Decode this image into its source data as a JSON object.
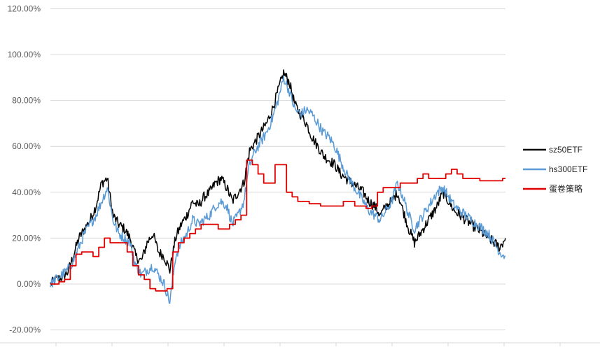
{
  "chart_data": {
    "type": "line",
    "title": "",
    "xlabel": "",
    "ylabel": "",
    "ylim": [
      -20,
      120
    ],
    "y_ticks": [
      120,
      100,
      80,
      60,
      40,
      20,
      0,
      -20
    ],
    "y_tick_labels": [
      "120.00%",
      "100.00%",
      "80.00%",
      "60.00%",
      "40.00%",
      "20.00%",
      "0.00%",
      "-20.00%"
    ],
    "grid": true,
    "legend_position": "right",
    "n_points": 81,
    "series": [
      {
        "name": "sz50ETF",
        "color": "#000000",
        "values": [
          0,
          2,
          3,
          5,
          12,
          20,
          24,
          28,
          34,
          44,
          46,
          30,
          26,
          24,
          20,
          12,
          10,
          18,
          22,
          14,
          12,
          6,
          20,
          26,
          30,
          36,
          34,
          38,
          40,
          44,
          46,
          42,
          36,
          40,
          44,
          58,
          62,
          66,
          70,
          76,
          84,
          92,
          88,
          78,
          74,
          70,
          64,
          60,
          56,
          54,
          52,
          48,
          46,
          44,
          42,
          40,
          36,
          34,
          30,
          34,
          36,
          40,
          32,
          24,
          18,
          22,
          26,
          30,
          34,
          40,
          36,
          32,
          30,
          28,
          26,
          24,
          22,
          20,
          18,
          16,
          20
        ]
      },
      {
        "name": "hs300ETF",
        "color": "#5B9BD5",
        "values": [
          0,
          2,
          4,
          6,
          10,
          16,
          22,
          26,
          30,
          36,
          42,
          28,
          22,
          20,
          18,
          8,
          4,
          6,
          8,
          4,
          0,
          -8,
          12,
          18,
          22,
          28,
          26,
          28,
          30,
          34,
          36,
          34,
          26,
          30,
          36,
          52,
          58,
          62,
          66,
          72,
          80,
          90,
          84,
          76,
          74,
          76,
          74,
          70,
          66,
          64,
          60,
          54,
          48,
          44,
          40,
          36,
          32,
          30,
          28,
          32,
          36,
          44,
          38,
          30,
          24,
          28,
          32,
          36,
          40,
          42,
          38,
          34,
          32,
          30,
          28,
          26,
          24,
          22,
          18,
          14,
          12
        ]
      },
      {
        "name": "蛋卷策略",
        "color": "#E00000",
        "values": [
          0,
          0,
          1,
          2,
          8,
          13,
          14,
          14,
          12,
          16,
          20,
          18,
          18,
          18,
          14,
          8,
          4,
          2,
          -2,
          -3,
          -3,
          -2,
          14,
          18,
          20,
          22,
          24,
          26,
          26,
          26,
          24,
          24,
          26,
          28,
          30,
          54,
          52,
          48,
          44,
          44,
          52,
          52,
          40,
          38,
          36,
          36,
          35,
          35,
          34,
          34,
          34,
          34,
          36,
          36,
          34,
          34,
          33,
          34,
          40,
          42,
          42,
          42,
          44,
          44,
          44,
          46,
          48,
          46,
          46,
          46,
          48,
          50,
          48,
          46,
          46,
          46,
          45,
          45,
          45,
          45,
          46
        ]
      }
    ]
  }
}
